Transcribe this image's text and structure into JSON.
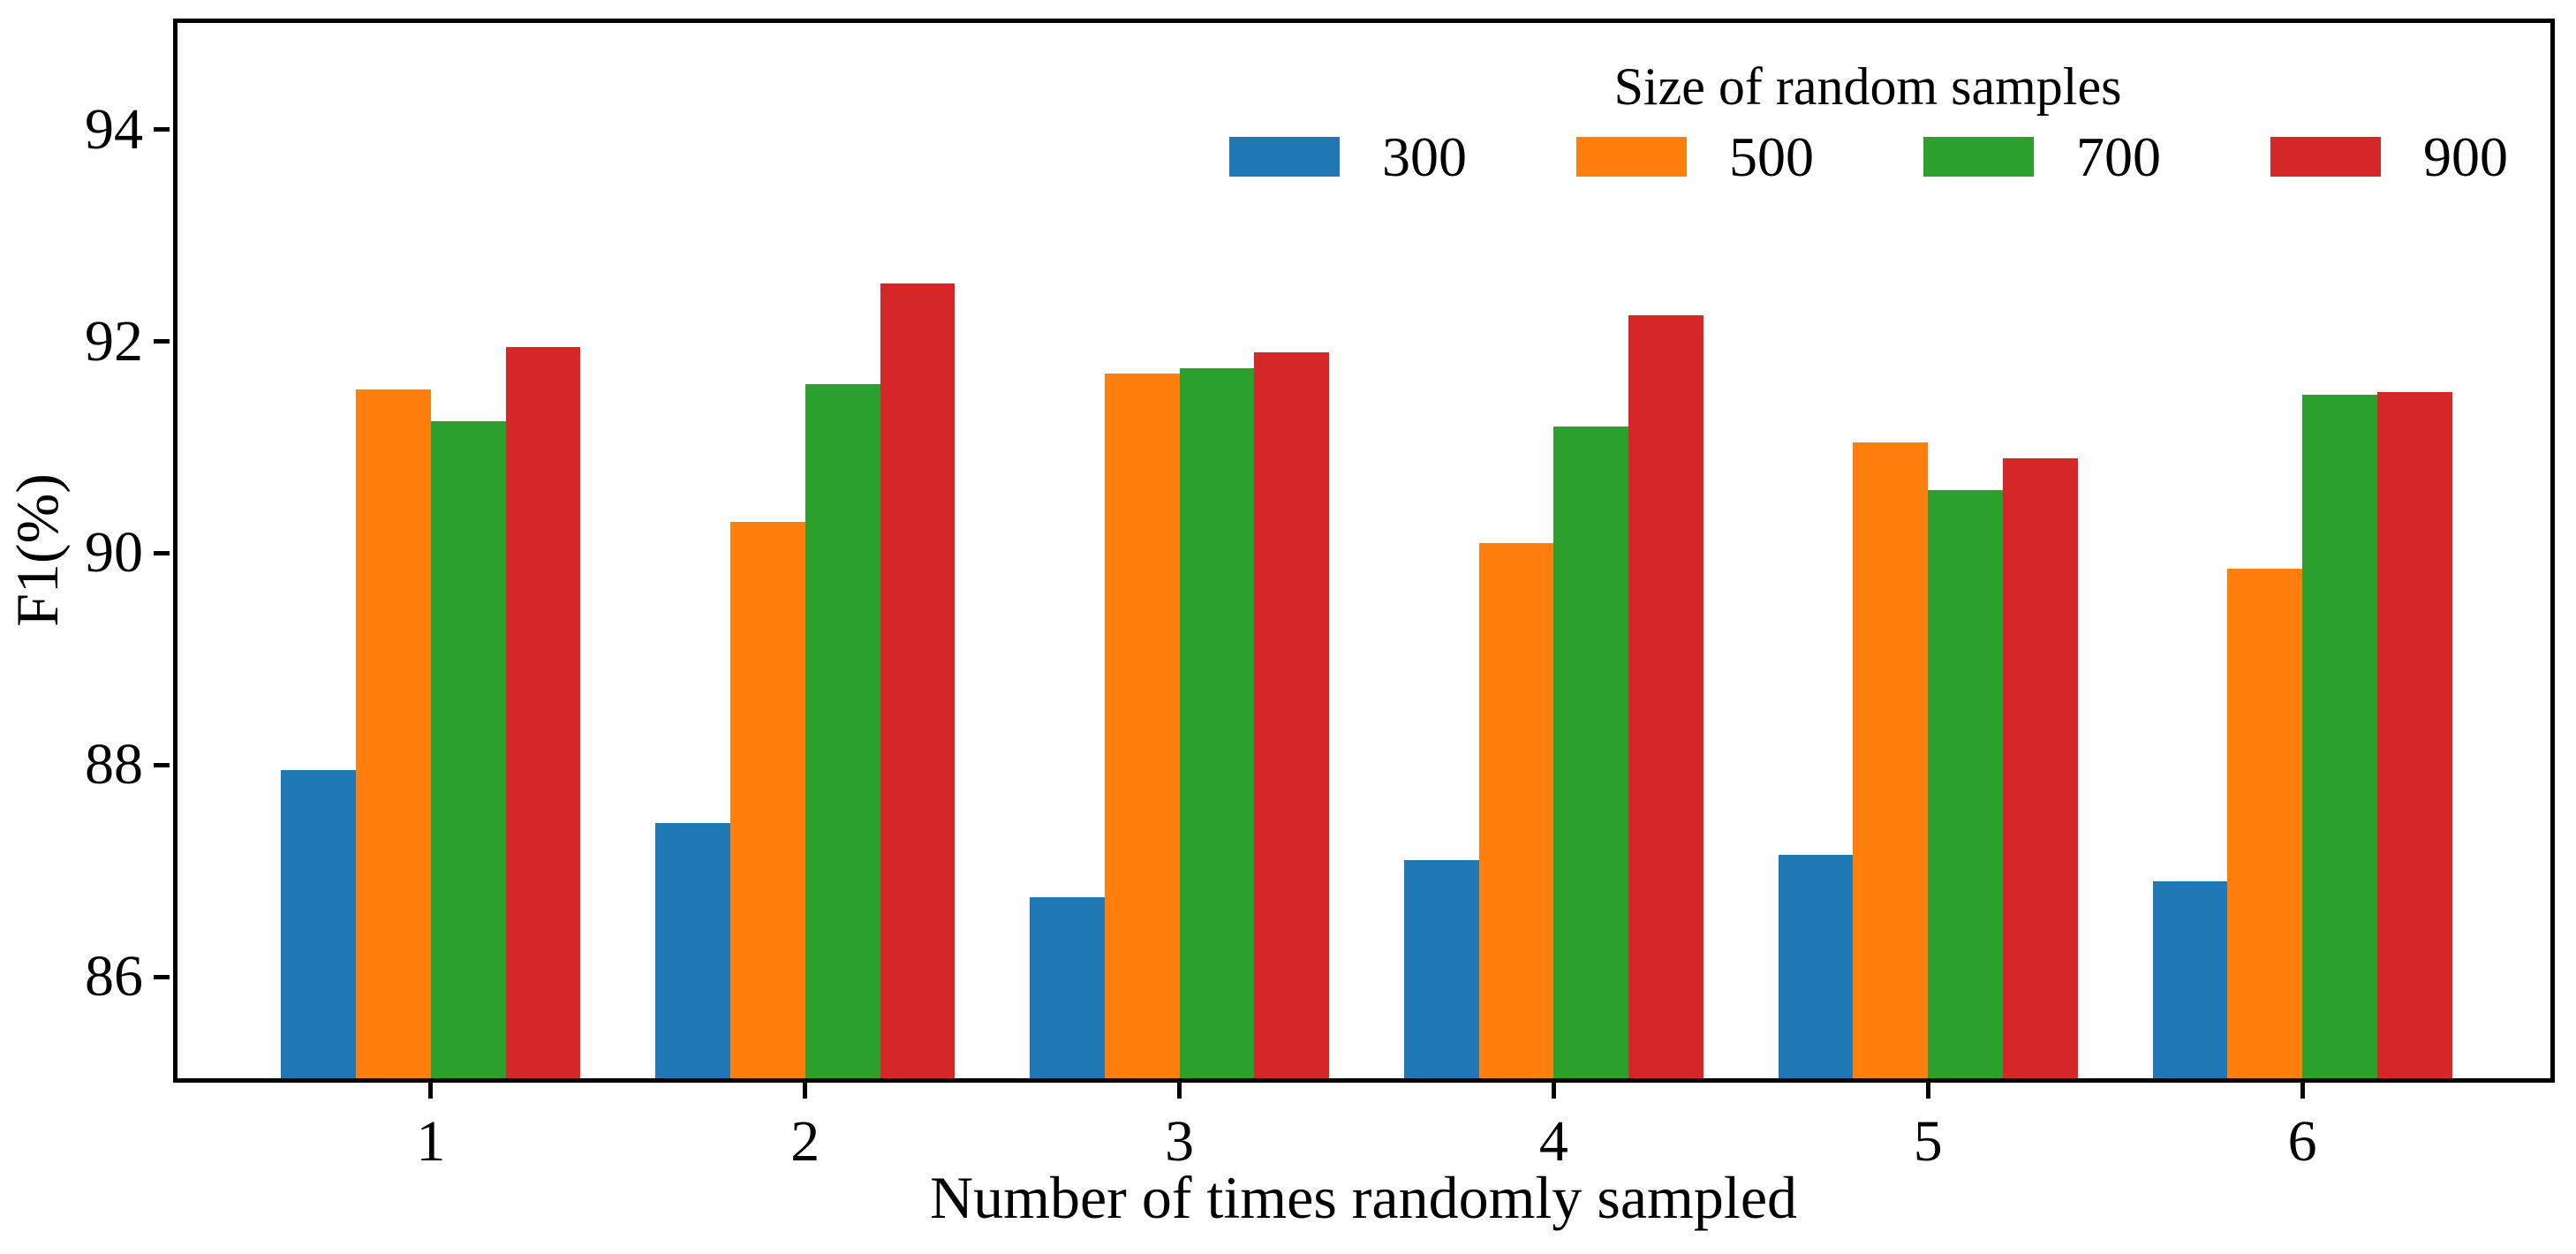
{
  "chart_data": {
    "type": "bar",
    "title": "",
    "xlabel": "Number of times randomly sampled",
    "ylabel": "F1(%)",
    "categories": [
      "1",
      "2",
      "3",
      "4",
      "5",
      "6"
    ],
    "series": [
      {
        "name": "300",
        "color": "#1f77b4",
        "values": [
          87.95,
          87.45,
          86.75,
          87.1,
          87.15,
          86.9
        ]
      },
      {
        "name": "500",
        "color": "#ff7f0e",
        "values": [
          91.55,
          90.3,
          91.7,
          90.1,
          91.05,
          89.85
        ]
      },
      {
        "name": "700",
        "color": "#2ca02c",
        "values": [
          91.25,
          91.6,
          91.75,
          91.2,
          90.6,
          91.5
        ]
      },
      {
        "name": "900",
        "color": "#d62728",
        "values": [
          91.95,
          92.55,
          91.9,
          92.25,
          90.9,
          91.52
        ]
      }
    ],
    "legend_title": "Size of random samples",
    "legend_position": "upper-right-inside",
    "ylim": [
      85,
      95.05
    ],
    "yticks": [
      86,
      88,
      90,
      92,
      94
    ],
    "grid": false,
    "axis_color": "#000000",
    "background_color": "#ffffff"
  }
}
